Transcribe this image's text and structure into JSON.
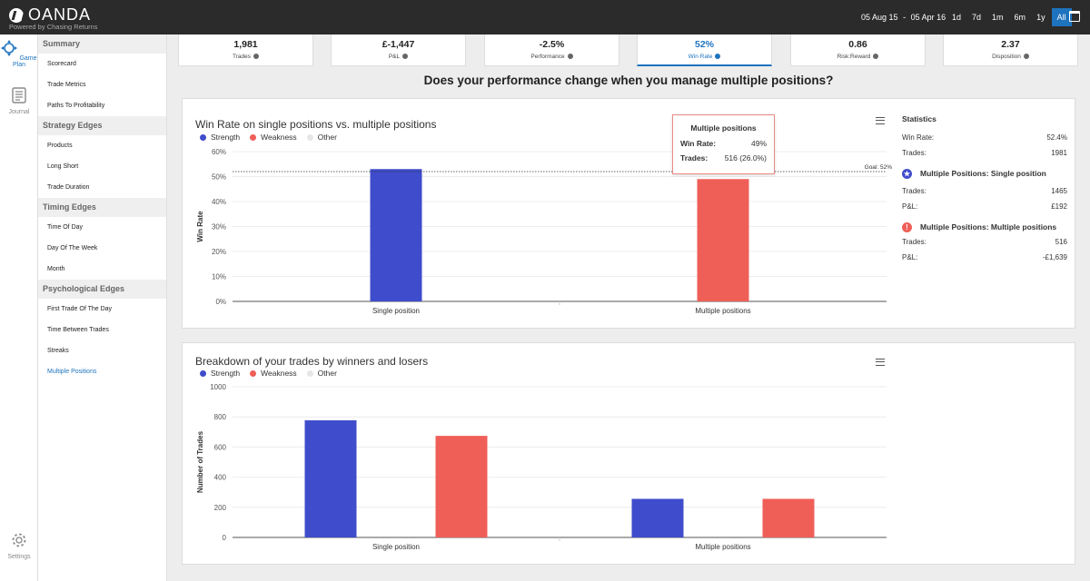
{
  "brand": {
    "name": "OANDA",
    "tagline": "Powered by Chasing Returns"
  },
  "header": {
    "date_from": "05 Aug 15",
    "date_sep": "-",
    "date_to": "05 Apr 16",
    "periods": [
      "1d",
      "7d",
      "1m",
      "6m",
      "1y",
      "All"
    ],
    "active_period": "All"
  },
  "rail": [
    {
      "label": "Game Plan",
      "icon": "game-plan-icon"
    },
    {
      "label": "Journal",
      "icon": "journal-icon"
    },
    {
      "label": "Settings",
      "icon": "gear-icon"
    }
  ],
  "sidebar": {
    "groups": [
      {
        "title": "Summary",
        "items": [
          "Scorecard",
          "Trade Metrics",
          "Paths To Profitability"
        ]
      },
      {
        "title": "Strategy Edges",
        "items": [
          "Products",
          "Long Short",
          "Trade Duration"
        ]
      },
      {
        "title": "Timing Edges",
        "items": [
          "Time Of Day",
          "Day Of The Week",
          "Month"
        ]
      },
      {
        "title": "Psychological Edges",
        "items": [
          "First Trade Of The Day",
          "Time Between Trades",
          "Streaks",
          "Multiple Positions"
        ]
      }
    ],
    "active_item": "Multiple Positions"
  },
  "kpis": [
    {
      "value": "1,981",
      "label": "Trades"
    },
    {
      "value": "£-1,447",
      "label": "P&L"
    },
    {
      "value": "-2.5%",
      "label": "Performance"
    },
    {
      "value": "52%",
      "label": "Win Rate"
    },
    {
      "value": "0.86",
      "label": "Risk:Reward"
    },
    {
      "value": "2.37",
      "label": "Disposition"
    }
  ],
  "active_kpi": "Win Rate",
  "question": "Does your performance change when you manage multiple positions?",
  "legend": [
    {
      "label": "Strength",
      "color": "#3f4ccb"
    },
    {
      "label": "Weakness",
      "color": "#ef5f58"
    },
    {
      "label": "Other",
      "color": "#e6e6e6"
    }
  ],
  "tooltip": {
    "title": "Multiple positions",
    "win_rate_label": "Win Rate:",
    "win_rate_value": "49%",
    "trades_label": "Trades:",
    "trades_value": "516 (26.0%)"
  },
  "statistics": {
    "title": "Statistics",
    "win_rate_label": "Win Rate:",
    "win_rate": "52.4%",
    "trades_label": "Trades:",
    "trades": "1981",
    "groups": [
      {
        "title": "Multiple Positions: Single position",
        "status": "strength",
        "trades_label": "Trades:",
        "trades": "1465",
        "pl_label": "P&L:",
        "pl": "£192"
      },
      {
        "title": "Multiple Positions: Multiple positions",
        "status": "weakness",
        "trades_label": "Trades:",
        "trades": "516",
        "pl_label": "P&L:",
        "pl": "-£1,639"
      }
    ]
  },
  "chart_data": [
    {
      "type": "bar",
      "title": "Win Rate on single positions vs. multiple positions",
      "ylabel": "Win Rate",
      "categories": [
        "Single position",
        "Multiple positions"
      ],
      "values": [
        53,
        49
      ],
      "colors": [
        "#3f4ccb",
        "#ef5f58"
      ],
      "ylim": [
        0,
        60
      ],
      "yticks": [
        "0%",
        "10%",
        "20%",
        "30%",
        "40%",
        "50%",
        "60%"
      ],
      "goal": {
        "value": 52,
        "label": "Goal: 52%"
      }
    },
    {
      "type": "bar",
      "title": "Breakdown of your trades by winners and losers",
      "ylabel": "Number of Trades",
      "categories": [
        "Single position",
        "Multiple positions"
      ],
      "series": [
        {
          "values": [
            777,
            256
          ],
          "color": "#3f4ccb"
        },
        {
          "values": [
            674,
            256
          ],
          "color": "#ef5f58"
        }
      ],
      "ylim": [
        0,
        1000
      ],
      "yticks": [
        "0",
        "200",
        "400",
        "600",
        "800",
        "1000"
      ]
    }
  ]
}
